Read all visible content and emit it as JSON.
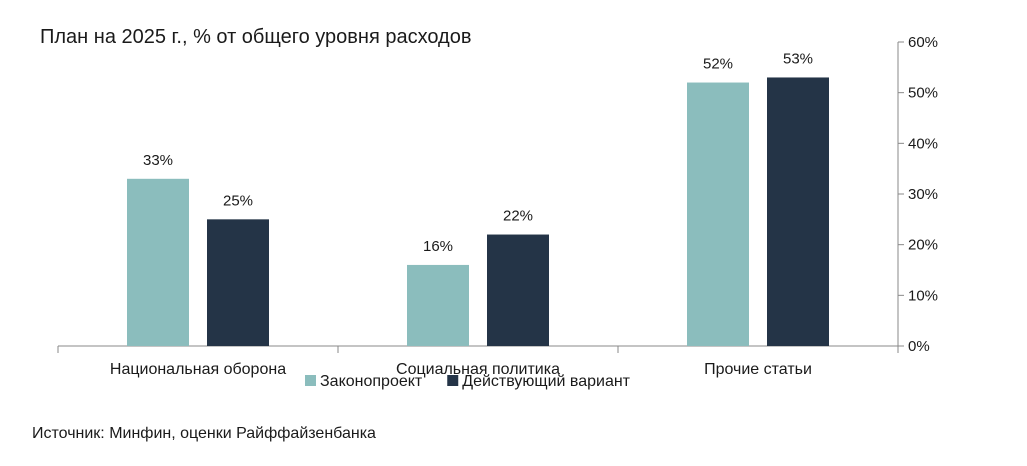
{
  "chart_data": {
    "type": "bar",
    "title": "План на 2025 г., % от общего уровня расходов",
    "categories": [
      "Национальная оборона",
      "Социальная политика",
      "Прочие статьи"
    ],
    "series": [
      {
        "name": "Законопроект",
        "values": [
          33,
          16,
          52
        ],
        "color": "#8bbdbd"
      },
      {
        "name": "Действующий вариант",
        "values": [
          25,
          22,
          53
        ],
        "color": "#243447"
      }
    ],
    "data_labels": [
      [
        "33%",
        "16%",
        "52%"
      ],
      [
        "25%",
        "22%",
        "53%"
      ]
    ],
    "y_ticks": [
      0,
      10,
      20,
      30,
      40,
      50,
      60
    ],
    "y_tick_labels": [
      "0%",
      "10%",
      "20%",
      "30%",
      "40%",
      "50%",
      "60%"
    ],
    "ylim": [
      0,
      60
    ],
    "y_axis_side": "right",
    "legend_position": "bottom",
    "xlabel": "",
    "ylabel": ""
  },
  "source": "Источник: Минфин, оценки Райффайзенбанка"
}
